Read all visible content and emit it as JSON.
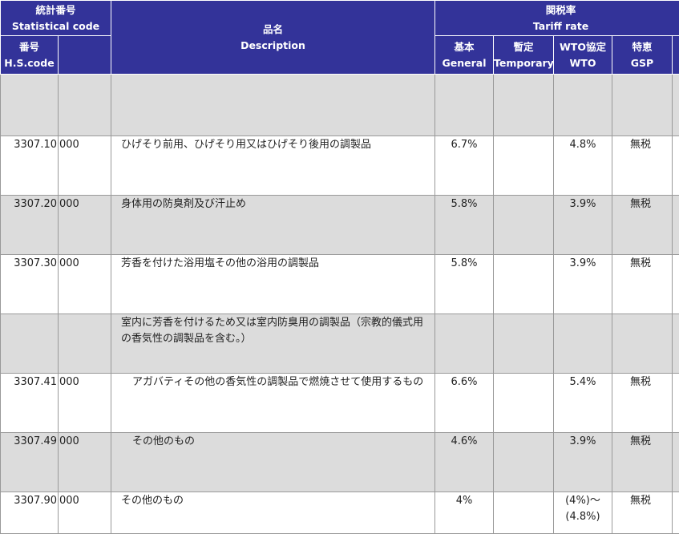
{
  "header": {
    "stat_code_ja": "統計番号",
    "stat_code_en": "Statistical code",
    "desc_ja": "品名",
    "desc_en": "Description",
    "tariff_ja": "関税率",
    "tariff_en": "Tariff rate",
    "hs_ja": "番号",
    "hs_en": "H.S.code",
    "general_ja": "基本",
    "general_en": "General",
    "temporary_ja": "暫定",
    "temporary_en": "Temporary",
    "wto_ja": "WTO協定",
    "wto_en": "WTO",
    "gsp_ja": "特恵",
    "gsp_en": "GSP"
  },
  "rows": [
    {
      "hs": "",
      "sub": "",
      "desc": "",
      "general": "",
      "temporary": "",
      "wto": "",
      "wto2": "",
      "gsp": ""
    },
    {
      "hs": "3307.10",
      "sub": "000",
      "desc": "ひげそり前用、ひげそり用又はひげそり後用の調製品",
      "general": "6.7%",
      "temporary": "",
      "wto": "4.8%",
      "wto2": "",
      "gsp": "無税"
    },
    {
      "hs": "3307.20",
      "sub": "000",
      "desc": "身体用の防臭剤及び汗止め",
      "general": "5.8%",
      "temporary": "",
      "wto": "3.9%",
      "wto2": "",
      "gsp": "無税"
    },
    {
      "hs": "3307.30",
      "sub": "000",
      "desc": "芳香を付けた浴用塩その他の浴用の調製品",
      "general": "5.8%",
      "temporary": "",
      "wto": "3.9%",
      "wto2": "",
      "gsp": "無税"
    },
    {
      "hs": "",
      "sub": "",
      "desc": "室内に芳香を付けるため又は室内防臭用の調製品（宗教的儀式用の香気性の調製品を含む。）",
      "general": "",
      "temporary": "",
      "wto": "",
      "wto2": "",
      "gsp": ""
    },
    {
      "hs": "3307.41",
      "sub": "000",
      "desc": "アガバティその他の香気性の調製品で燃焼させて使用するもの",
      "general": "6.6%",
      "temporary": "",
      "wto": "5.4%",
      "wto2": "",
      "gsp": "無税"
    },
    {
      "hs": "3307.49",
      "sub": "000",
      "desc": "その他のもの",
      "general": "4.6%",
      "temporary": "",
      "wto": "3.9%",
      "wto2": "",
      "gsp": "無税"
    },
    {
      "hs": "3307.90",
      "sub": "000",
      "desc": "その他のもの",
      "general": "4%",
      "temporary": "",
      "wto": "(4%)～",
      "wto2": "(4.8%)",
      "gsp": "無税"
    }
  ]
}
